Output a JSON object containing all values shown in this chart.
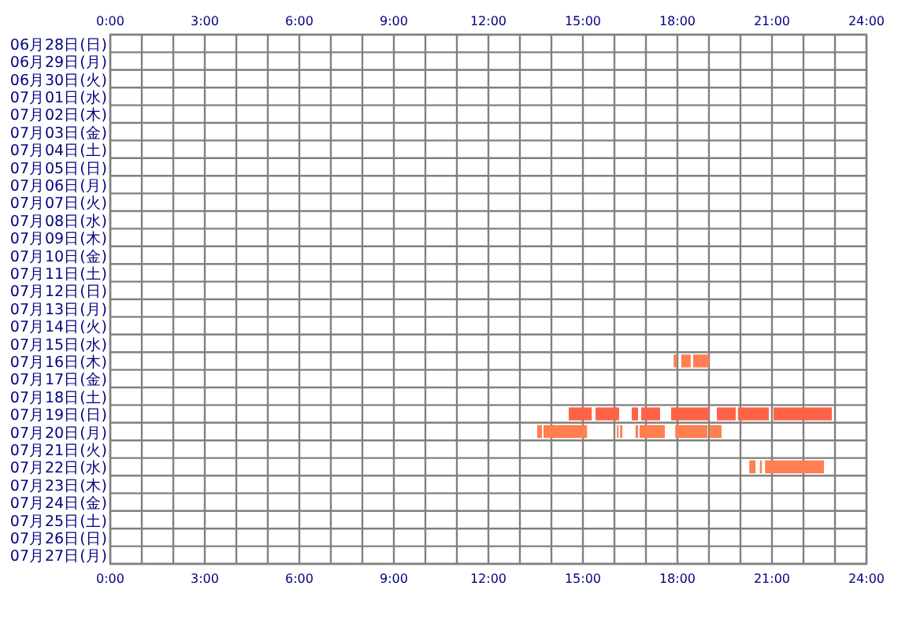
{
  "chart_data": {
    "type": "bar",
    "orientation": "horizontal",
    "grid": true,
    "categories": [
      "06月28日(日)",
      "06月29日(月)",
      "06月30日(火)",
      "07月01日(水)",
      "07月02日(木)",
      "07月03日(金)",
      "07月04日(土)",
      "07月05日(日)",
      "07月06日(月)",
      "07月07日(火)",
      "07月08日(水)",
      "07月09日(木)",
      "07月10日(金)",
      "07月11日(土)",
      "07月12日(日)",
      "07月13日(月)",
      "07月14日(火)",
      "07月15日(水)",
      "07月16日(木)",
      "07月17日(金)",
      "07月18日(土)",
      "07月19日(日)",
      "07月20日(月)",
      "07月21日(火)",
      "07月22日(水)",
      "07月23日(木)",
      "07月24日(金)",
      "07月25日(土)",
      "07月26日(日)",
      "07月27日(月)"
    ],
    "xlim": [
      0,
      24
    ],
    "xticks": [
      {
        "value": 0,
        "label": "0:00"
      },
      {
        "value": 3,
        "label": "3:00"
      },
      {
        "value": 6,
        "label": "6:00"
      },
      {
        "value": 9,
        "label": "9:00"
      },
      {
        "value": 12,
        "label": "12:00"
      },
      {
        "value": 15,
        "label": "15:00"
      },
      {
        "value": 18,
        "label": "18:00"
      },
      {
        "value": 21,
        "label": "21:00"
      },
      {
        "value": 24,
        "label": "24:00"
      }
    ],
    "x2lim": [
      0,
      24
    ],
    "x2ticks": [
      {
        "value": 0,
        "label": "0:00"
      },
      {
        "value": 3,
        "label": "3:00"
      },
      {
        "value": 6,
        "label": "6:00"
      },
      {
        "value": 9,
        "label": "9:00"
      },
      {
        "value": 12,
        "label": "12:00"
      },
      {
        "value": 15,
        "label": "15:00"
      },
      {
        "value": 18,
        "label": "18:00"
      },
      {
        "value": 21,
        "label": "21:00"
      },
      {
        "value": 24,
        "label": "24:00"
      }
    ],
    "series": [
      {
        "base": [
          null,
          null,
          null,
          null,
          null,
          null,
          null,
          null,
          null,
          null,
          null,
          null,
          null,
          null,
          null,
          null,
          null,
          null,
          17.88,
          null,
          null,
          14.55,
          13.55,
          null,
          20.28,
          null,
          null,
          null,
          null,
          null
        ],
        "values": [
          null,
          null,
          null,
          null,
          null,
          null,
          null,
          null,
          null,
          null,
          null,
          null,
          null,
          null,
          null,
          null,
          null,
          null,
          0.09,
          null,
          null,
          0.73,
          0.15,
          null,
          0.2,
          null,
          null,
          null,
          null,
          null
        ],
        "colors": [
          null,
          null,
          null,
          null,
          null,
          null,
          null,
          null,
          null,
          null,
          null,
          null,
          null,
          null,
          null,
          null,
          null,
          null,
          "#ff7f50",
          null,
          null,
          "#ff6347",
          "#ff7f50",
          null,
          "#ff7f50",
          null,
          null,
          null,
          null,
          null
        ]
      },
      {
        "base": [
          null,
          null,
          null,
          null,
          null,
          null,
          null,
          null,
          null,
          null,
          null,
          null,
          null,
          null,
          null,
          null,
          null,
          null,
          18.12,
          null,
          null,
          15.4,
          13.75,
          null,
          20.62,
          null,
          null,
          null,
          null,
          null
        ],
        "values": [
          null,
          null,
          null,
          null,
          null,
          null,
          null,
          null,
          null,
          null,
          null,
          null,
          null,
          null,
          null,
          null,
          null,
          null,
          0.3,
          null,
          null,
          0.75,
          1.38,
          null,
          0.06,
          null,
          null,
          null,
          null,
          null
        ],
        "colors": [
          null,
          null,
          null,
          null,
          null,
          null,
          null,
          null,
          null,
          null,
          null,
          null,
          null,
          null,
          null,
          null,
          null,
          null,
          "#ff7f50",
          null,
          null,
          "#ff6347",
          "#ff7f50",
          null,
          "#ff7f50",
          null,
          null,
          null,
          null,
          null
        ]
      },
      {
        "base": [
          null,
          null,
          null,
          null,
          null,
          null,
          null,
          null,
          null,
          null,
          null,
          null,
          null,
          null,
          null,
          null,
          null,
          null,
          18.5,
          null,
          null,
          16.55,
          16.08,
          null,
          20.78,
          null,
          null,
          null,
          null,
          null
        ],
        "values": [
          null,
          null,
          null,
          null,
          null,
          null,
          null,
          null,
          null,
          null,
          null,
          null,
          null,
          null,
          null,
          null,
          null,
          null,
          0.5,
          null,
          null,
          0.2,
          0.05,
          null,
          1.87,
          null,
          null,
          null,
          null,
          null
        ],
        "colors": [
          null,
          null,
          null,
          null,
          null,
          null,
          null,
          null,
          null,
          null,
          null,
          null,
          null,
          null,
          null,
          null,
          null,
          null,
          "#ff7f50",
          null,
          null,
          "#ff6347",
          "#ff7f50",
          null,
          "#ff7f50",
          null,
          null,
          null,
          null,
          null
        ]
      },
      {
        "base": [
          null,
          null,
          null,
          null,
          null,
          null,
          null,
          null,
          null,
          null,
          null,
          null,
          null,
          null,
          null,
          null,
          null,
          null,
          null,
          null,
          null,
          16.85,
          16.18,
          null,
          null,
          null,
          null,
          null,
          null,
          null
        ],
        "values": [
          null,
          null,
          null,
          null,
          null,
          null,
          null,
          null,
          null,
          null,
          null,
          null,
          null,
          null,
          null,
          null,
          null,
          null,
          null,
          null,
          null,
          0.6,
          0.07,
          null,
          null,
          null,
          null,
          null,
          null,
          null
        ],
        "colors": [
          null,
          null,
          null,
          null,
          null,
          null,
          null,
          null,
          null,
          null,
          null,
          null,
          null,
          null,
          null,
          null,
          null,
          null,
          null,
          null,
          null,
          "#ff6347",
          "#ff7f50",
          null,
          null,
          null,
          null,
          null,
          null,
          null
        ]
      },
      {
        "base": [
          null,
          null,
          null,
          null,
          null,
          null,
          null,
          null,
          null,
          null,
          null,
          null,
          null,
          null,
          null,
          null,
          null,
          null,
          null,
          null,
          null,
          17.8,
          16.67,
          null,
          null,
          null,
          null,
          null,
          null,
          null
        ],
        "values": [
          null,
          null,
          null,
          null,
          null,
          null,
          null,
          null,
          null,
          null,
          null,
          null,
          null,
          null,
          null,
          null,
          null,
          null,
          null,
          null,
          null,
          1.2,
          0.08,
          null,
          null,
          null,
          null,
          null,
          null,
          null
        ],
        "colors": [
          null,
          null,
          null,
          null,
          null,
          null,
          null,
          null,
          null,
          null,
          null,
          null,
          null,
          null,
          null,
          null,
          null,
          null,
          null,
          null,
          null,
          "#ff6347",
          "#ff7f50",
          null,
          null,
          null,
          null,
          null,
          null,
          null
        ]
      },
      {
        "base": [
          null,
          null,
          null,
          null,
          null,
          null,
          null,
          null,
          null,
          null,
          null,
          null,
          null,
          null,
          null,
          null,
          null,
          null,
          null,
          null,
          null,
          19.25,
          16.8,
          null,
          null,
          null,
          null,
          null,
          null,
          null
        ],
        "values": [
          null,
          null,
          null,
          null,
          null,
          null,
          null,
          null,
          null,
          null,
          null,
          null,
          null,
          null,
          null,
          null,
          null,
          null,
          null,
          null,
          null,
          0.6,
          0.8,
          null,
          null,
          null,
          null,
          null,
          null,
          null
        ],
        "colors": [
          null,
          null,
          null,
          null,
          null,
          null,
          null,
          null,
          null,
          null,
          null,
          null,
          null,
          null,
          null,
          null,
          null,
          null,
          null,
          null,
          null,
          "#ff6347",
          "#ff7f50",
          null,
          null,
          null,
          null,
          null,
          null,
          null
        ]
      },
      {
        "base": [
          null,
          null,
          null,
          null,
          null,
          null,
          null,
          null,
          null,
          null,
          null,
          null,
          null,
          null,
          null,
          null,
          null,
          null,
          null,
          null,
          null,
          19.92,
          17.93,
          null,
          null,
          null,
          null,
          null,
          null,
          null
        ],
        "values": [
          null,
          null,
          null,
          null,
          null,
          null,
          null,
          null,
          null,
          null,
          null,
          null,
          null,
          null,
          null,
          null,
          null,
          null,
          null,
          null,
          null,
          0.98,
          1.02,
          null,
          null,
          null,
          null,
          null,
          null,
          null
        ],
        "colors": [
          null,
          null,
          null,
          null,
          null,
          null,
          null,
          null,
          null,
          null,
          null,
          null,
          null,
          null,
          null,
          null,
          null,
          null,
          null,
          null,
          null,
          "#ff6347",
          "#ff7f50",
          null,
          null,
          null,
          null,
          null,
          null,
          null
        ]
      },
      {
        "base": [
          null,
          null,
          null,
          null,
          null,
          null,
          null,
          null,
          null,
          null,
          null,
          null,
          null,
          null,
          null,
          null,
          null,
          null,
          null,
          null,
          null,
          21.05,
          19.02,
          null,
          null,
          null,
          null,
          null,
          null,
          null
        ],
        "values": [
          null,
          null,
          null,
          null,
          null,
          null,
          null,
          null,
          null,
          null,
          null,
          null,
          null,
          null,
          null,
          null,
          null,
          null,
          null,
          null,
          null,
          1.85,
          0.38,
          null,
          null,
          null,
          null,
          null,
          null,
          null
        ],
        "colors": [
          null,
          null,
          null,
          null,
          null,
          null,
          null,
          null,
          null,
          null,
          null,
          null,
          null,
          null,
          null,
          null,
          null,
          null,
          null,
          null,
          null,
          "#ff6347",
          "#ff7f50",
          null,
          null,
          null,
          null,
          null,
          null,
          null
        ]
      }
    ]
  }
}
